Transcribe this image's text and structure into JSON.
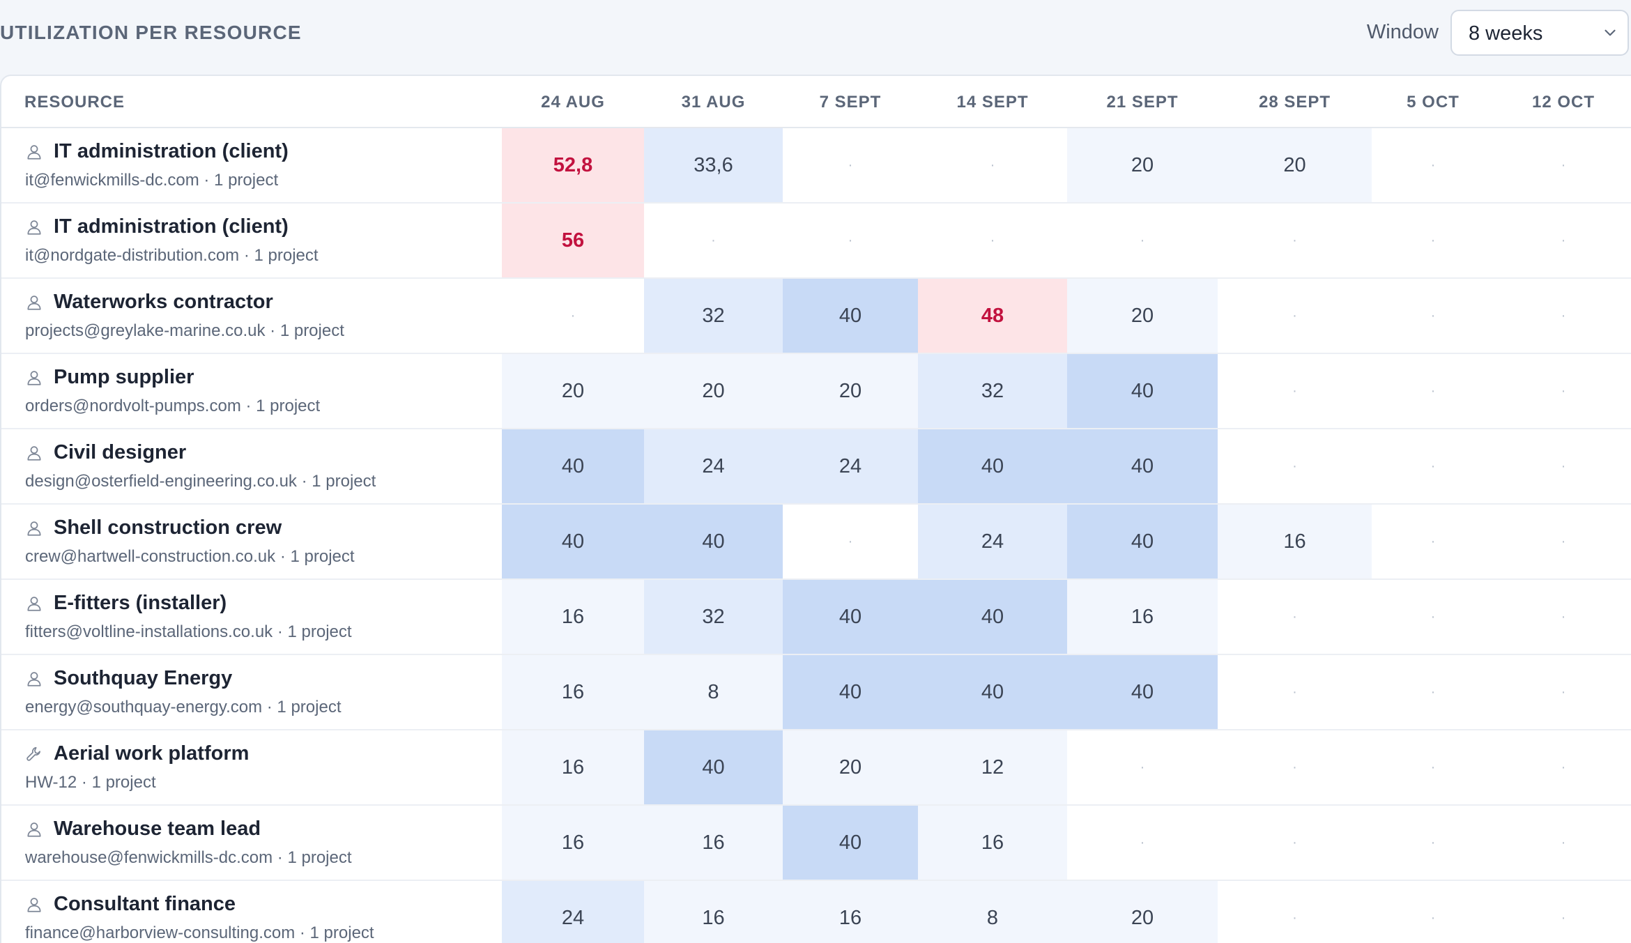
{
  "header": {
    "title": "UTILIZATION PER RESOURCE",
    "window_label": "Window",
    "window_value": "8 weeks"
  },
  "columns": {
    "resource": "RESOURCE",
    "weeks": [
      "24 AUG",
      "31 AUG",
      "7 SEPT",
      "14 SEPT",
      "21 SEPT",
      "28 SEPT",
      "5 OCT",
      "12 OCT"
    ]
  },
  "empty_mark": "·",
  "capacity_hours": 40,
  "rows": [
    {
      "name": "IT administration (client)",
      "sub": "it@fenwickmills-dc.com · 1 project",
      "icon": "person-icon",
      "values": [
        "52,8",
        "33,6",
        null,
        null,
        "20",
        "20",
        null,
        null
      ]
    },
    {
      "name": "IT administration (client)",
      "sub": "it@nordgate-distribution.com · 1 project",
      "icon": "person-icon",
      "values": [
        "56",
        null,
        null,
        null,
        null,
        null,
        null,
        null
      ]
    },
    {
      "name": "Waterworks contractor",
      "sub": "projects@greylake-marine.co.uk · 1 project",
      "icon": "person-icon",
      "values": [
        null,
        "32",
        "40",
        "48",
        "20",
        null,
        null,
        null
      ]
    },
    {
      "name": "Pump supplier",
      "sub": "orders@nordvolt-pumps.com · 1 project",
      "icon": "person-icon",
      "values": [
        "20",
        "20",
        "20",
        "32",
        "40",
        null,
        null,
        null
      ]
    },
    {
      "name": "Civil designer",
      "sub": "design@osterfield-engineering.co.uk · 1 project",
      "icon": "person-icon",
      "values": [
        "40",
        "24",
        "24",
        "40",
        "40",
        null,
        null,
        null
      ]
    },
    {
      "name": "Shell construction crew",
      "sub": "crew@hartwell-construction.co.uk · 1 project",
      "icon": "person-icon",
      "values": [
        "40",
        "40",
        null,
        "24",
        "40",
        "16",
        null,
        null
      ]
    },
    {
      "name": "E-fitters (installer)",
      "sub": "fitters@voltline-installations.co.uk · 1 project",
      "icon": "person-icon",
      "values": [
        "16",
        "32",
        "40",
        "40",
        "16",
        null,
        null,
        null
      ]
    },
    {
      "name": "Southquay Energy",
      "sub": "energy@southquay-energy.com · 1 project",
      "icon": "person-icon",
      "values": [
        "16",
        "8",
        "40",
        "40",
        "40",
        null,
        null,
        null
      ]
    },
    {
      "name": "Aerial work platform",
      "sub": "HW-12 · 1 project",
      "icon": "wrench-icon",
      "values": [
        "16",
        "40",
        "20",
        "12",
        null,
        null,
        null,
        null
      ]
    },
    {
      "name": "Warehouse team lead",
      "sub": "warehouse@fenwickmills-dc.com · 1 project",
      "icon": "person-icon",
      "values": [
        "16",
        "16",
        "40",
        "16",
        null,
        null,
        null,
        null
      ]
    },
    {
      "name": "Consultant finance",
      "sub": "finance@harborview-consulting.com · 1 project",
      "icon": "person-icon",
      "values": [
        "24",
        "16",
        "16",
        "8",
        "20",
        null,
        null,
        null
      ]
    }
  ],
  "colors": {
    "over": "#fde4e7",
    "over_text": "#c2123f",
    "high": "#c8daf6",
    "mid": "#e1ebfb",
    "low": "#f2f6fd"
  }
}
